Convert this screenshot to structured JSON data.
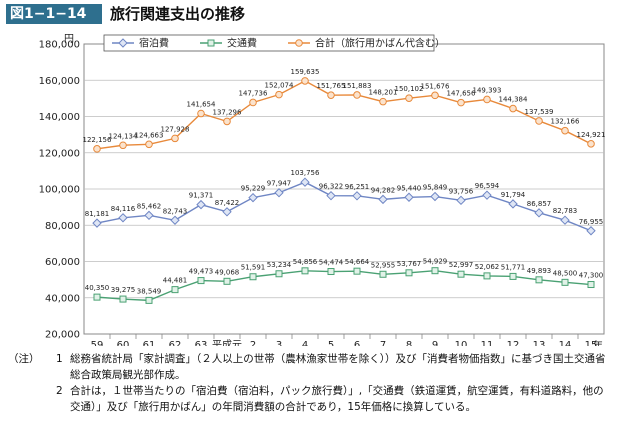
{
  "figure": {
    "label": "図1−1−14",
    "title": "旅行関連支出の推移"
  },
  "chart_data": {
    "type": "line",
    "ylabel": "円",
    "xlabel": "",
    "ylim": [
      20000,
      180000
    ],
    "yticks": [
      "20,000",
      "40,000",
      "60,000",
      "80,000",
      "100,000",
      "120,000",
      "140,000",
      "160,000",
      "180,000"
    ],
    "categories": [
      "59",
      "60",
      "61",
      "62",
      "63",
      "平成元",
      "2",
      "3",
      "4",
      "5",
      "6",
      "7",
      "8",
      "9",
      "10",
      "11",
      "12",
      "13",
      "14",
      "15"
    ],
    "x_unit": "年",
    "grid": true,
    "legend_position": "top",
    "series": [
      {
        "name": "宿泊費",
        "color": "#6f86c4",
        "marker": "diamond",
        "values": [
          81181,
          84116,
          85462,
          82743,
          91371,
          87422,
          95229,
          97947,
          103756,
          96322,
          96251,
          94282,
          95440,
          95849,
          93756,
          96594,
          91794,
          86857,
          82783,
          76955
        ],
        "labels": [
          "81,181",
          "84,116",
          "85,462",
          "82,743",
          "91,371",
          "87,422",
          "95,229",
          "97,947",
          "103,756",
          "96,322",
          "96,251",
          "94,282",
          "95,440",
          "95,849",
          "93,756",
          "96,594",
          "91,794",
          "86,857",
          "82,783",
          "76,955"
        ]
      },
      {
        "name": "交通費",
        "color": "#4aa173",
        "marker": "square",
        "values": [
          40350,
          39275,
          38549,
          44481,
          49473,
          49068,
          51591,
          53234,
          54856,
          54474,
          54664,
          52955,
          53767,
          54929,
          52997,
          52062,
          51771,
          49893,
          48500,
          47300
        ],
        "labels": [
          "40,350",
          "39,275",
          "38,549",
          "44,481",
          "49,473",
          "49,068",
          "51,591",
          "53,234",
          "54,856",
          "54,474",
          "54,664",
          "52,955",
          "53,767",
          "54,929",
          "52,997",
          "52,062",
          "51,771",
          "49,893",
          "48,500",
          "47,300"
        ]
      },
      {
        "name": "合計（旅行用かばん代含む）",
        "color": "#e8893a",
        "marker": "circle",
        "values": [
          122156,
          124134,
          124663,
          127928,
          141654,
          137296,
          147736,
          152074,
          159635,
          151765,
          151883,
          148201,
          150102,
          151676,
          147656,
          149393,
          144384,
          137539,
          132166,
          124921
        ],
        "labels": [
          "122,156",
          "124,134",
          "124,663",
          "127,928",
          "141,654",
          "137,296",
          "147,736",
          "152,074",
          "159,635",
          "151,765",
          "151,883",
          "148,201",
          "150,102",
          "151,676",
          "147,656",
          "149,393",
          "144,384",
          "137,539",
          "132,166",
          "124,921"
        ]
      }
    ]
  },
  "notes": {
    "prefix": "（注）",
    "items": [
      {
        "num": "1",
        "text": "総務省統計局「家計調査」（２人以上の世帯（農林漁家世帯を除く））及び「消費者物価指数」に基づき国土交通省総合政策局観光部作成。"
      },
      {
        "num": "2",
        "text": "合計は，１世帯当たりの「宿泊費（宿泊料，パック旅行費）」,「交通費（鉄道運賃，航空運賃，有料道路料，他の交通）」及び「旅行用かばん」の年間消費額の合計であり，15年価格に換算している。"
      }
    ]
  }
}
